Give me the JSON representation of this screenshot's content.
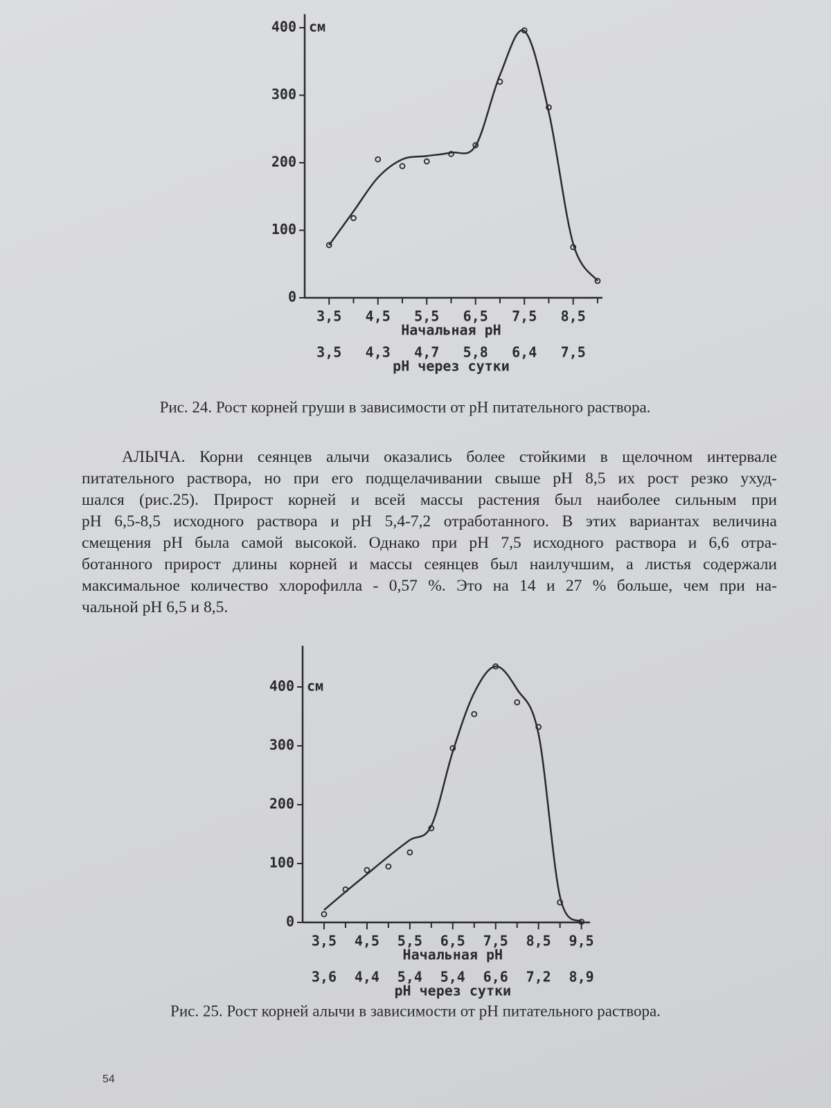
{
  "chart_data": [
    {
      "type": "line",
      "y_label": "см",
      "x_label": "Начальная pH",
      "x2_label": "pH через сутки",
      "caption": "Рис. 24. Рост корней груши в зависимости от pH питательного раствора.",
      "xlim": [
        3,
        9.1
      ],
      "ylim": [
        0,
        420
      ],
      "xticks": [
        {
          "value": 3.5,
          "label": "3,5"
        },
        {
          "value": 4.5,
          "label": "4,5"
        },
        {
          "value": 5.5,
          "label": "5,5"
        },
        {
          "value": 6.5,
          "label": "6,5"
        },
        {
          "value": 7.5,
          "label": "7,5"
        },
        {
          "value": 8.5,
          "label": "8,5"
        }
      ],
      "x_minor_ticks": [
        4,
        5,
        6,
        7,
        8,
        9
      ],
      "x2ticks": [
        {
          "value": 3.5,
          "label": "3,5"
        },
        {
          "value": 4.5,
          "label": "4,3"
        },
        {
          "value": 5.5,
          "label": "4,7"
        },
        {
          "value": 6.5,
          "label": "5,8"
        },
        {
          "value": 7.5,
          "label": "6,4"
        },
        {
          "value": 8.5,
          "label": "7,5"
        }
      ],
      "yticks": [
        0,
        100,
        200,
        300,
        400
      ],
      "x": [
        3.5,
        4,
        4.5,
        5,
        5.5,
        6,
        6.5,
        7,
        7.5,
        8,
        8.5,
        9
      ],
      "series": [
        {
          "color": "#2a2a2a",
          "marker": "circle",
          "values": [
            78,
            118,
            205,
            195,
            202,
            213,
            226,
            320,
            396,
            282,
            75,
            25
          ]
        },
        {
          "color": "#2a2a2a",
          "marker": "none",
          "smooth": true,
          "values": [
            78,
            128,
            178,
            205,
            210,
            215,
            225,
            330,
            395,
            275,
            80,
            25
          ]
        }
      ]
    },
    {
      "type": "line",
      "y_label": "см",
      "x_label": "Начальная pH",
      "x2_label": "pH через сутки",
      "caption": "Рис. 25. Рост корней алычи в зависимости от pH питательного раствора.",
      "xlim": [
        3,
        9.7
      ],
      "ylim": [
        0,
        470
      ],
      "xticks": [
        {
          "value": 3.5,
          "label": "3,5"
        },
        {
          "value": 4.5,
          "label": "4,5"
        },
        {
          "value": 5.5,
          "label": "5,5"
        },
        {
          "value": 6.5,
          "label": "6,5"
        },
        {
          "value": 7.5,
          "label": "7,5"
        },
        {
          "value": 8.5,
          "label": "8,5"
        },
        {
          "value": 9.5,
          "label": "9,5"
        }
      ],
      "x_minor_ticks": [
        4,
        5,
        6,
        7,
        8,
        9
      ],
      "x2ticks": [
        {
          "value": 3.5,
          "label": "3,6"
        },
        {
          "value": 4.5,
          "label": "4,4"
        },
        {
          "value": 5.5,
          "label": "5,4"
        },
        {
          "value": 6.5,
          "label": "5,4"
        },
        {
          "value": 7.5,
          "label": "6,6"
        },
        {
          "value": 8.5,
          "label": "7,2"
        },
        {
          "value": 9.5,
          "label": "8,9"
        }
      ],
      "yticks": [
        0,
        100,
        200,
        300,
        400
      ],
      "x": [
        3.5,
        4,
        4.5,
        5,
        5.5,
        6,
        6.5,
        7,
        7.5,
        8,
        8.5,
        9,
        9.5
      ],
      "series": [
        {
          "color": "#2a2a2a",
          "marker": "circle",
          "values": [
            14,
            56,
            89,
            95,
            119,
            160,
            296,
            354,
            435,
            374,
            332,
            34,
            1
          ]
        },
        {
          "color": "#2a2a2a",
          "marker": "none",
          "smooth": true,
          "values": [
            21,
            52,
            82,
            112,
            140,
            164,
            290,
            390,
            435,
            396,
            320,
            44,
            1
          ]
        }
      ]
    }
  ],
  "paragraph_lines": [
    "АЛЫЧА. Корни сеянцев алычи оказались более стойкими в щелочном интервале",
    "питательного раствора, но при его подщелачивании свыше pH 8,5 их рост резко ухуд-",
    "шался (рис.25). Прирост корней и всей массы растения был наиболее сильным при",
    "pH 6,5-8,5 исходного раствора и pH 5,4-7,2 отработанного. В этих вариантах величина",
    "смещения pH была самой высокой. Однако при pH 7,5 исходного раствора и 6,6 отра-",
    "ботанного прирост длины корней и массы сеянцев был наилучшим, а листья содержали",
    "максимальное количество хлорофилла - 0,57 %. Это на 14 и 27 % больше, чем при на-",
    "чальной pH 6,5 и 8,5."
  ],
  "page_number": "54"
}
